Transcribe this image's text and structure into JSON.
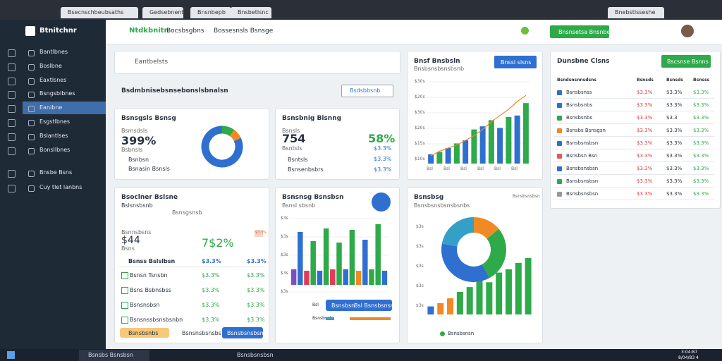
{
  "browser": {
    "tabs": [
      "Bsecnschbeubsaths",
      "Gedsebnenthoe",
      "Bnsnbepb",
      "Bnsbetlsnc"
    ],
    "right_tab": "Bnebstlsseshe"
  },
  "sidebar": {
    "brand": "Btnitchnr",
    "items": [
      "Bantlbnes",
      "Boslbne",
      "Eaxtlsnes",
      "Bsngsblbnes",
      "Eanibne",
      "Esgstlbnes",
      "Bslantlses",
      "Bonsllbnes",
      "Bnsbe Bsns",
      "Cuy tlet lanbns"
    ],
    "active": 4
  },
  "topbar": {
    "title": "Ntdkbnitn",
    "nav": [
      "Bocsbsgbns",
      "Bossesnsls Bsnsge"
    ],
    "button": "Bnsnsetsa Bnsnben"
  },
  "search": {
    "placeholder": "Eantbelsts"
  },
  "section": {
    "title": "Bsdmbnisebsnsebonslsbnalsn",
    "button": "Bsdsbbsnb"
  },
  "card1": {
    "title": "Bsnsgsls Bsnsg",
    "label": "Bsmsdsls",
    "big": "399%",
    "sub": "Bsbnsls",
    "legend": [
      "Bsnbsn",
      "Bsnasin Bsnsls"
    ],
    "donut": [
      10,
      8,
      82
    ],
    "colors": [
      "#2eaa4a",
      "#f08a24",
      "#2f6fd0"
    ]
  },
  "card2": {
    "title": "Bsnsbnig Bisnng",
    "label": "Bsnsls",
    "big": "754",
    "sub": "Bsntsls",
    "items": [
      "Bsntsls",
      "Bsnsenbsbrs"
    ],
    "right_big": "58%",
    "right_values": [
      "$3.3%",
      "$3.3%",
      "$3.3%"
    ]
  },
  "card3": {
    "title": "Bnsf Bnsbsln",
    "sub": "Bnsbsnsbsnsbsnb",
    "button": "Bnssl slsns",
    "axis": [
      "$30s",
      "$20s",
      "$30s",
      "$20s",
      "$15s",
      "$10s"
    ],
    "xlabels": [
      "Bsl",
      "Bsl",
      "Bsl",
      "Bsl",
      "Bsl",
      "Bsl"
    ],
    "bars": [
      12,
      15,
      20,
      26,
      30,
      44,
      48,
      56,
      46,
      60,
      62,
      78
    ],
    "line": [
      10,
      16,
      20,
      24,
      30,
      36,
      44,
      54,
      62,
      70,
      80,
      88
    ],
    "colors": [
      "#2f6fd0",
      "#2eaa4a"
    ],
    "line_color": "#f08a24"
  },
  "panel": {
    "title": "Dunsbne Clsns",
    "button": "Bscsnse Bsnns",
    "headers": [
      "Bsndsnsnnsdsns",
      "Bsnsds",
      "Bsnsds",
      "Bsnsss"
    ],
    "rows": [
      [
        "Bsnsbsnss",
        "$3.3%",
        "$3.3%",
        "$3.3%"
      ],
      [
        "Bsnsbsnbs",
        "$3.3%",
        "$3.3%",
        "$3.3%"
      ],
      [
        "Bsnsbsnbs",
        "$3.3%",
        "$3.3",
        "$3.3%"
      ],
      [
        "Bsnsbs Bsnsgsn",
        "$3.3%",
        "$3.3%",
        "$3.3%"
      ],
      [
        "Bsnsbsnsbsn",
        "$3.3%",
        "$3.3%",
        "$3.3%"
      ],
      [
        "Bsnsbsn Bsn",
        "$3.3%",
        "$3.3%",
        "$3.3%"
      ],
      [
        "Bsnsbsnsbsn",
        "$3.3%",
        "$3.3%",
        "$3.3%"
      ],
      [
        "Bsnsbsnsbsn",
        "$3.3%",
        "$3.3%",
        "$3.3%"
      ],
      [
        "Bsnsbsnsbsn",
        "$3.3%",
        "$3.3%",
        "$3.3%"
      ]
    ],
    "icon_colors": [
      "#2f6fd0",
      "#2f6fd0",
      "#2eaa4a",
      "#f08a24",
      "#2f6fd0",
      "#e05a5a",
      "#2f6fd0",
      "#2eaa4a",
      "#999999"
    ]
  },
  "card5": {
    "title": "Bsoclner Bslsne",
    "tags": [
      "Bslsnsbsnb",
      "Bsnsgsnsb"
    ],
    "label": "Bsnnsbsns",
    "big": "$44",
    "sub": "Bsns",
    "right_big": "7$2%",
    "badge": "$3.3%",
    "header": [
      "Bsnss Bslslbsn",
      "$3.3%",
      "$3.3%"
    ],
    "rows": [
      [
        "Bsnsn Tsnsbn",
        "$3.3%",
        "$3.3%"
      ],
      [
        "Bsns Bsbnsbss",
        "$3.3%",
        "$3.3%"
      ],
      [
        "Bsnsnsbsn",
        "$3.3%",
        "$3.3%"
      ],
      [
        "Bsnsnssbsnsbsnbn",
        "$3.3%",
        "$3.3%"
      ]
    ],
    "buttons": [
      "Bsnsbsnbs",
      "Bsnsnsbsnsbs",
      "Bsnsbsnsbsn"
    ]
  },
  "card6": {
    "title": "Bsnsnsg Bsnsbsn",
    "sub": "Bsnsl sbsnb",
    "axis": [
      "$3s",
      "$3s",
      "$3s",
      "$3s",
      "$3s"
    ],
    "bars": [
      22,
      75,
      20,
      62,
      20,
      80,
      22,
      60,
      22,
      78,
      20,
      64,
      22,
      86,
      20
    ],
    "colors": [
      "#7b4fc4",
      "#2f6fd0",
      "#e03b5a",
      "#2eaa4a",
      "#2f6fd0",
      "#2eaa4a",
      "#e03b5a",
      "#2eaa4a",
      "#2f6fd0",
      "#2eaa4a",
      "#f08a24",
      "#2f6fd0",
      "#2eaa4a",
      "#2eaa4a",
      "#2f6fd0"
    ],
    "buttons": [
      "Bsnsbsn",
      "Bsl Bsnsbsnsn"
    ],
    "footer": [
      "Bsl",
      "Bsnsbsnb"
    ]
  },
  "card7": {
    "title": "Bsnsbsg",
    "sub": "Bsnsbsnsbsnsbsnbs",
    "right": "Bsnsbsnsbsn",
    "axis": [
      "$3s",
      "$3s",
      "$3s",
      "$3s",
      "$3s"
    ],
    "donut": [
      14,
      28,
      36,
      22
    ],
    "donut_colors": [
      "#f08a24",
      "#2eaa4a",
      "#2f6fd0",
      "#34a0c8"
    ],
    "bars": [
      10,
      14,
      20,
      28,
      34,
      44,
      40,
      52,
      56,
      64,
      70
    ],
    "bar_colors": [
      "#2f6fd0",
      "#f08a24",
      "#f08a24",
      "#2eaa4a",
      "#2eaa4a",
      "#2eaa4a",
      "#2eaa4a",
      "#2eaa4a",
      "#2eaa4a",
      "#2eaa4a",
      "#2eaa4a"
    ],
    "legend": "Bsnsbsnsn"
  },
  "taskbar": {
    "items": [
      "Bsnsbs Bsnsbsn",
      "Bsnsbsnsbsn"
    ],
    "time": "3:04:87",
    "date": "8/04/83 4"
  }
}
